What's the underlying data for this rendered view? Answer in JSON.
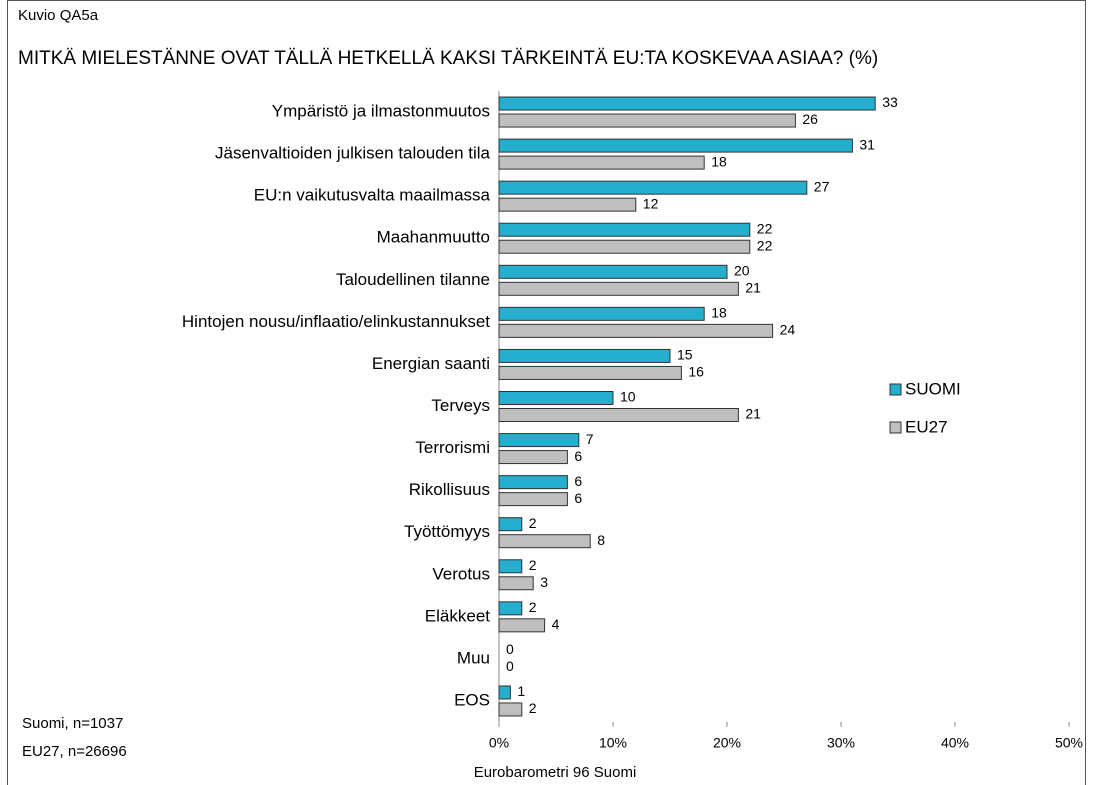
{
  "chart_data": {
    "type": "hbar",
    "figure_label": "Kuvio QA5a",
    "title": "MITKÄ MIELESTÄNNE OVAT TÄLLÄ HETKELLÄ KAKSI TÄRKEINTÄ EU:TA KOSKEVAA ASIAA? (%)",
    "categories": [
      "Ympäristö ja ilmastonmuutos",
      "Jäsenvaltioiden julkisen talouden tila",
      "EU:n vaikutusvalta maailmassa",
      "Maahanmuutto",
      "Taloudellinen tilanne",
      "Hintojen nousu/inflaatio/elinkustannukset",
      "Energian saanti",
      "Terveys",
      "Terrorismi",
      "Rikollisuus",
      "Työttömyys",
      "Verotus",
      "Eläkkeet",
      "Muu",
      "EOS"
    ],
    "series": [
      {
        "name": "SUOMI",
        "color": "#25aecd",
        "values": [
          33,
          31,
          27,
          22,
          20,
          18,
          15,
          10,
          7,
          6,
          2,
          2,
          2,
          0,
          1
        ]
      },
      {
        "name": "EU27",
        "color": "#bfbfbf",
        "values": [
          26,
          18,
          12,
          22,
          21,
          24,
          16,
          21,
          6,
          6,
          8,
          3,
          4,
          0,
          2
        ]
      }
    ],
    "xlim": [
      0,
      50
    ],
    "xticks": [
      {
        "value": 0,
        "label": "0%"
      },
      {
        "value": 10,
        "label": "10%"
      },
      {
        "value": 20,
        "label": "20%"
      },
      {
        "value": 30,
        "label": "30%"
      },
      {
        "value": 40,
        "label": "40%"
      },
      {
        "value": 50,
        "label": "50%"
      }
    ],
    "legend_position": "right",
    "notes": [
      "Suomi, n=1037",
      "EU27, n=26696"
    ],
    "source": "Eurobarometri 96 Suomi"
  }
}
